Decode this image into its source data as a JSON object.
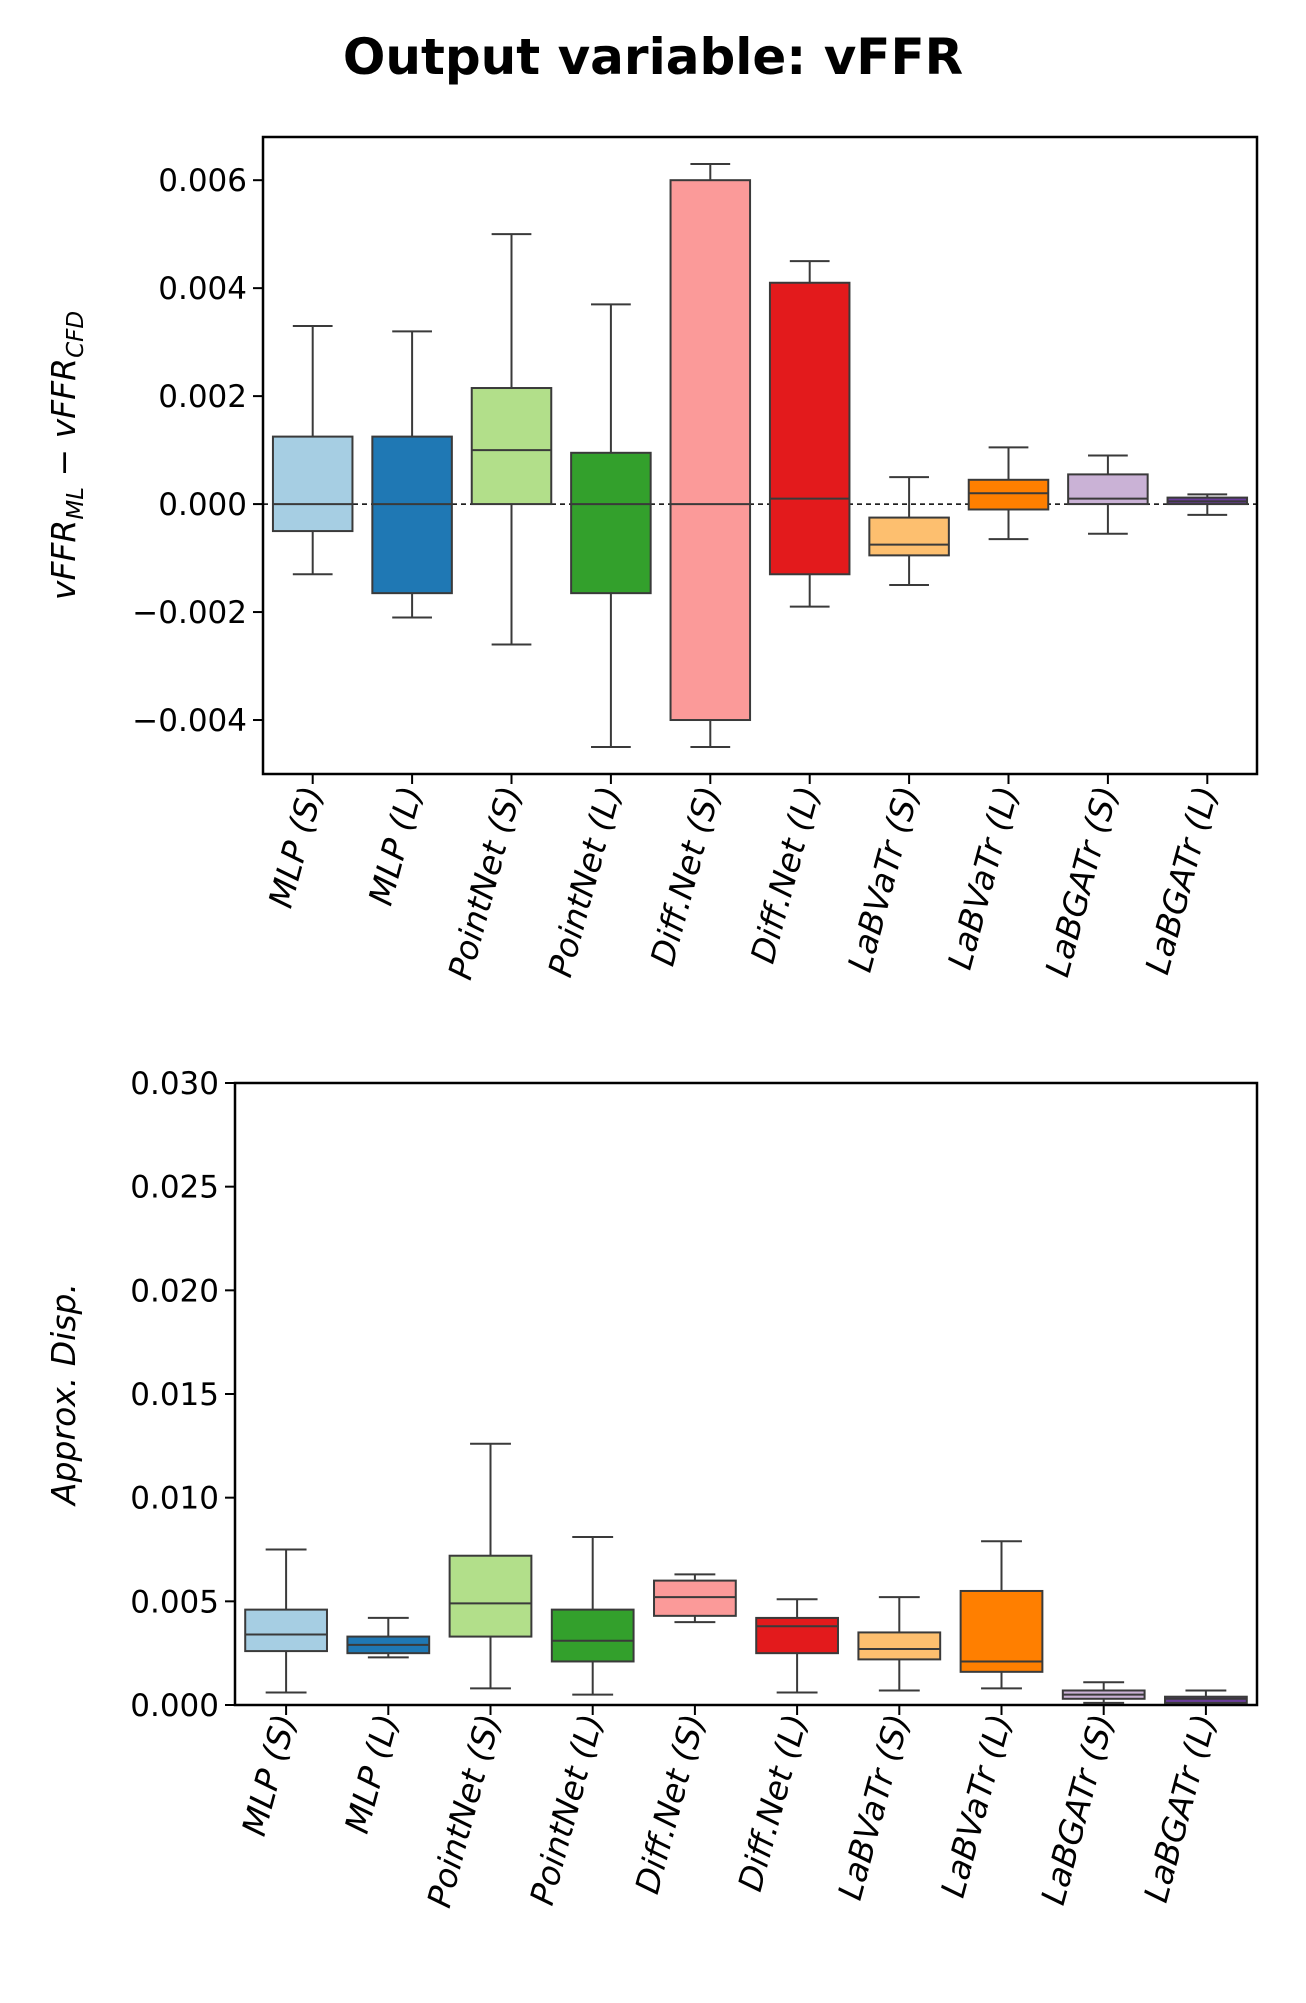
{
  "title": "Output variable: vFFR",
  "categories": [
    "MLP (S)",
    "MLP (L)",
    "PointNet (S)",
    "PointNet (L)",
    "Diff.Net (S)",
    "Diff.Net (L)",
    "LaBVaTr (S)",
    "LaBVaTr (L)",
    "LaBGATr (S)",
    "LaBGATr (L)"
  ],
  "colors": [
    "#a6cee3",
    "#1f78b4",
    "#b2df8a",
    "#33a02c",
    "#fb9a99",
    "#e31a1c",
    "#fdbf6f",
    "#ff7f00",
    "#cab2d6",
    "#6a3d9a"
  ],
  "chart_data": [
    {
      "type": "box",
      "title": "",
      "xlabel": "",
      "ylabel": "vFFR_ML − vFFR_CFD",
      "ylabel_main": "vFFR",
      "ylabel_sub1": "ML",
      "ylabel_sub2": "CFD",
      "ylabel_minus": " − ",
      "ylim": [
        -0.005,
        0.0068
      ],
      "yticks": [
        -0.004,
        -0.002,
        0.0,
        0.002,
        0.004,
        0.006
      ],
      "yticklabels": [
        "−0.004",
        "−0.002",
        "0.000",
        "0.002",
        "0.004",
        "0.006"
      ],
      "zero_line": true,
      "boxes": [
        {
          "whisker_low": -0.0013,
          "q1": -0.0005,
          "median": 0.0,
          "q3": 0.00125,
          "whisker_high": 0.0033
        },
        {
          "whisker_low": -0.0021,
          "q1": -0.00165,
          "median": 0.0,
          "q3": 0.00125,
          "whisker_high": 0.0032
        },
        {
          "whisker_low": -0.0026,
          "q1": 0.0,
          "median": 0.001,
          "q3": 0.00215,
          "whisker_high": 0.005
        },
        {
          "whisker_low": -0.0045,
          "q1": -0.00165,
          "median": 0.0,
          "q3": 0.00095,
          "whisker_high": 0.0037
        },
        {
          "whisker_low": -0.0045,
          "q1": -0.004,
          "median": 0.0,
          "q3": 0.006,
          "whisker_high": 0.0063
        },
        {
          "whisker_low": -0.0019,
          "q1": -0.0013,
          "median": 0.0001,
          "q3": 0.0041,
          "whisker_high": 0.0045
        },
        {
          "whisker_low": -0.0015,
          "q1": -0.00095,
          "median": -0.00075,
          "q3": -0.00025,
          "whisker_high": 0.0005
        },
        {
          "whisker_low": -0.00065,
          "q1": -0.0001,
          "median": 0.0002,
          "q3": 0.00045,
          "whisker_high": 0.00105
        },
        {
          "whisker_low": -0.00055,
          "q1": 0.0,
          "median": 0.0001,
          "q3": 0.00055,
          "whisker_high": 0.0009
        },
        {
          "whisker_low": -0.0002,
          "q1": 0.0,
          "median": 5e-05,
          "q3": 0.00012,
          "whisker_high": 0.00018
        }
      ]
    },
    {
      "type": "box",
      "title": "",
      "xlabel": "",
      "ylabel": "Approx. Disp.",
      "ylim": [
        0.0,
        0.03
      ],
      "yticks": [
        0.0,
        0.005,
        0.01,
        0.015,
        0.02,
        0.025,
        0.03
      ],
      "yticklabels": [
        "0.000",
        "0.005",
        "0.010",
        "0.015",
        "0.020",
        "0.025",
        "0.030"
      ],
      "zero_line": false,
      "boxes": [
        {
          "whisker_low": 0.0006,
          "q1": 0.0026,
          "median": 0.0034,
          "q3": 0.0046,
          "whisker_high": 0.0075
        },
        {
          "whisker_low": 0.0023,
          "q1": 0.0025,
          "median": 0.0029,
          "q3": 0.0033,
          "whisker_high": 0.0042
        },
        {
          "whisker_low": 0.0008,
          "q1": 0.0033,
          "median": 0.0049,
          "q3": 0.0072,
          "whisker_high": 0.0126
        },
        {
          "whisker_low": 0.0005,
          "q1": 0.0021,
          "median": 0.0031,
          "q3": 0.0046,
          "whisker_high": 0.0081
        },
        {
          "whisker_low": 0.004,
          "q1": 0.0043,
          "median": 0.0052,
          "q3": 0.006,
          "whisker_high": 0.0063
        },
        {
          "whisker_low": 0.0006,
          "q1": 0.0025,
          "median": 0.0038,
          "q3": 0.0042,
          "whisker_high": 0.0051
        },
        {
          "whisker_low": 0.0007,
          "q1": 0.0022,
          "median": 0.0027,
          "q3": 0.0035,
          "whisker_high": 0.0052
        },
        {
          "whisker_low": 0.0008,
          "q1": 0.0016,
          "median": 0.0021,
          "q3": 0.0055,
          "whisker_high": 0.0079
        },
        {
          "whisker_low": 0.0001,
          "q1": 0.0003,
          "median": 0.0005,
          "q3": 0.0007,
          "whisker_high": 0.0011
        },
        {
          "whisker_low": 0.0,
          "q1": 0.0001,
          "median": 0.0003,
          "q3": 0.0004,
          "whisker_high": 0.0007
        }
      ]
    }
  ]
}
